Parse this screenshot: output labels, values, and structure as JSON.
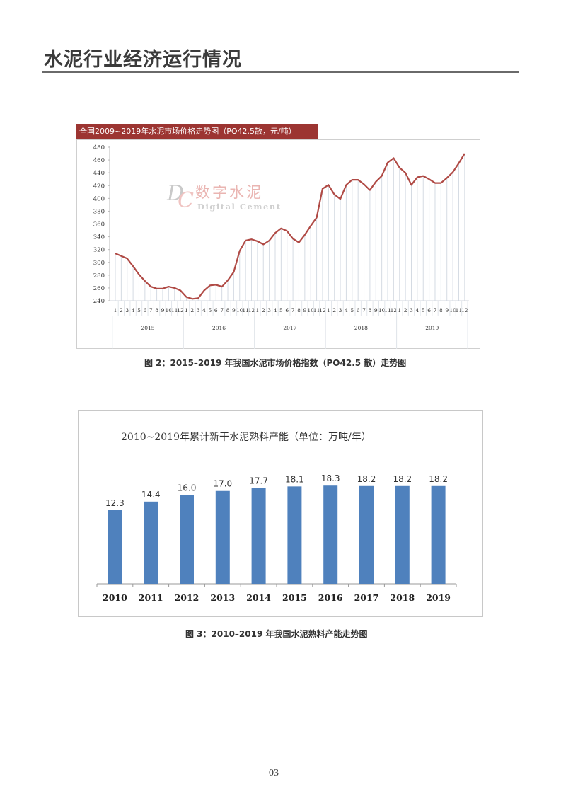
{
  "page": {
    "section_title": "水泥行业经济运行情况",
    "page_number": "03"
  },
  "figure2": {
    "caption": "图 2：2015–2019 年我国水泥市场价格指数（PO42.5 散）走势图",
    "header": "全国2009~2019年水泥市场价格走势图（PO42.5散，元/吨）",
    "watermark_cn": "数字水泥",
    "watermark_en": "Digital Cement",
    "watermark_logo": "DC"
  },
  "figure3": {
    "caption": "图 3：2010–2019 年我国水泥熟料产能走势图",
    "title": "2010~2019年累计新干水泥熟料产能（单位：万吨/年）"
  },
  "colors": {
    "line": "#b04a45",
    "header_bg": "#9c3532",
    "bar": "#4f81bd",
    "grid": "#d5dbe3"
  },
  "chart_data": [
    {
      "type": "line",
      "title": "全国2009~2019年水泥市场价格走势图（PO42.5散，元/吨）",
      "xlabel": "",
      "ylabel": "元/吨",
      "ylim": [
        240,
        480
      ],
      "yticks": [
        240,
        260,
        280,
        300,
        320,
        340,
        360,
        380,
        400,
        420,
        440,
        460,
        480
      ],
      "grid": "vertical",
      "legend": "none",
      "years": [
        "2015",
        "2016",
        "2017",
        "2018",
        "2019"
      ],
      "months": [
        "1",
        "2",
        "3",
        "4",
        "5",
        "6",
        "7",
        "8",
        "9",
        "10",
        "11",
        "12"
      ],
      "series": [
        {
          "name": "PO42.5散 价格",
          "values": [
            314,
            310,
            306,
            294,
            281,
            271,
            262,
            259,
            259,
            262,
            260,
            256,
            246,
            243,
            244,
            256,
            264,
            265,
            262,
            272,
            285,
            318,
            334,
            336,
            333,
            328,
            334,
            346,
            353,
            349,
            337,
            331,
            343,
            357,
            370,
            415,
            421,
            406,
            399,
            421,
            429,
            429,
            422,
            413,
            426,
            435,
            456,
            463,
            448,
            440,
            421,
            433,
            435,
            430,
            424,
            424,
            432,
            441,
            455,
            470
          ]
        }
      ]
    },
    {
      "type": "bar",
      "title": "2010~2019年累计新干水泥熟料产能（单位：万吨/年）",
      "xlabel": "",
      "ylabel": "",
      "categories": [
        "2010",
        "2011",
        "2012",
        "2013",
        "2014",
        "2015",
        "2016",
        "2017",
        "2018",
        "2019"
      ],
      "values": [
        12.3,
        14.4,
        16.0,
        17.0,
        17.7,
        18.1,
        18.3,
        18.2,
        18.2,
        18.2
      ],
      "labels": [
        "12.3",
        "14.4",
        "16.0",
        "17.0",
        "17.7",
        "18.1",
        "18.3",
        "18.2",
        "18.2",
        "18.2"
      ],
      "grid": "none",
      "legend": "none"
    }
  ]
}
